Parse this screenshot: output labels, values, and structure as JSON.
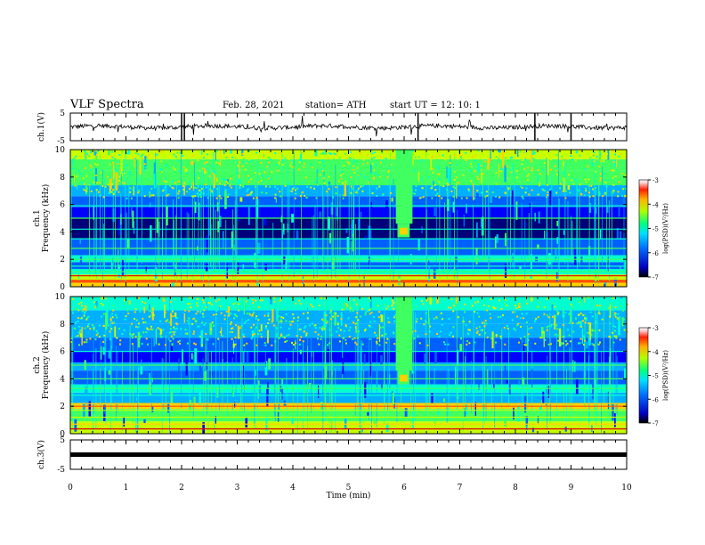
{
  "header": {
    "title": "VLF Spectra",
    "date": "Feb. 28, 2021",
    "station": "station= ATH",
    "start": "start UT =  12: 10: 1"
  },
  "colors": {
    "colormap": [
      "#00007a",
      "#0000ff",
      "#0060ff",
      "#00b0ff",
      "#00ffd0",
      "#40ff60",
      "#c8ff00",
      "#ffd000",
      "#ff5000",
      "#e00000",
      "#ffffff"
    ]
  },
  "chart_data": [
    {
      "type": "line",
      "name": "ch1-waveform",
      "ylabel": "ch.1(V)",
      "ylim": [
        -5,
        5
      ],
      "yticks": [
        "5",
        "-5"
      ],
      "x_range": [
        0,
        10
      ],
      "baseline": 0
    },
    {
      "type": "heatmap",
      "name": "ch1-spectrogram",
      "ylabel": "ch.1\nFrequency (kHz)",
      "ylim": [
        0,
        10
      ],
      "yticks": [
        "0",
        "2",
        "4",
        "6",
        "8",
        "10"
      ],
      "x_range": [
        0,
        10
      ],
      "colorbar": {
        "label": "log(PSD)(V²/Hz)",
        "range": [
          -7,
          -3
        ],
        "ticks": [
          "-3",
          "-4",
          "-5",
          "-6",
          "-7"
        ]
      },
      "features": {
        "dark_band_khz": [
          3.5,
          5
        ],
        "burst_time_min": 6,
        "burst_freq_khz": 4
      }
    },
    {
      "type": "heatmap",
      "name": "ch2-spectrogram",
      "ylabel": "ch.2\nFrequency (kHz)",
      "ylim": [
        0,
        10
      ],
      "yticks": [
        "0",
        "2",
        "4",
        "6",
        "8",
        "10"
      ],
      "x_range": [
        0,
        10
      ],
      "colorbar": {
        "label": "log(PSD)(V²/Hz)",
        "range": [
          -7,
          -3
        ],
        "ticks": [
          "-3",
          "-4",
          "-5",
          "-6",
          "-7"
        ]
      },
      "features": {
        "burst_time_min": 6,
        "burst_freq_khz": 4
      }
    },
    {
      "type": "line",
      "name": "ch3-waveform",
      "ylabel": "ch.3(V)",
      "ylim": [
        -5,
        5
      ],
      "yticks": [
        "5",
        "-5"
      ],
      "x_range": [
        0,
        10
      ],
      "value": 0
    }
  ],
  "xaxis": {
    "label": "Time  (min)",
    "ticks": [
      "0",
      "1",
      "2",
      "3",
      "4",
      "5",
      "6",
      "7",
      "8",
      "9",
      "10"
    ]
  }
}
